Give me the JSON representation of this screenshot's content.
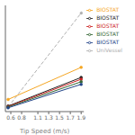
{
  "chart_data": {
    "type": "line",
    "xlabel": "Tip Speed (m/s)",
    "x": [
      0.55,
      1.9
    ],
    "xlim": [
      0.5,
      1.95
    ],
    "xticks": [
      0.6,
      0.8,
      1.1,
      1.3,
      1.5,
      1.7,
      1.9
    ],
    "ylim": [
      0,
      420
    ],
    "tick_labels": "x",
    "grid": false,
    "legend": "right",
    "series": [
      {
        "name": "UniVessel",
        "color": "#b0b0b0",
        "values": [
          18,
          390
        ],
        "line_style": "dashed",
        "marker": "circle"
      },
      {
        "name": "BIOSTAT",
        "color": "#f5a623",
        "values": [
          48,
          175
        ],
        "line_style": "solid",
        "marker": "circle"
      },
      {
        "name": "BIOSTAT",
        "color": "#222222",
        "values": [
          22,
          135
        ],
        "line_style": "solid",
        "marker": "circle"
      },
      {
        "name": "BIOSTAT",
        "color": "#cc2222",
        "values": [
          20,
          128
        ],
        "line_style": "solid",
        "marker": "circle"
      },
      {
        "name": "BIOSTAT",
        "color": "#336633",
        "values": [
          18,
          118
        ],
        "line_style": "solid",
        "marker": "circle"
      },
      {
        "name": "BIOSTAT",
        "color": "#224488",
        "values": [
          15,
          108
        ],
        "line_style": "solid",
        "marker": "circle"
      }
    ]
  }
}
